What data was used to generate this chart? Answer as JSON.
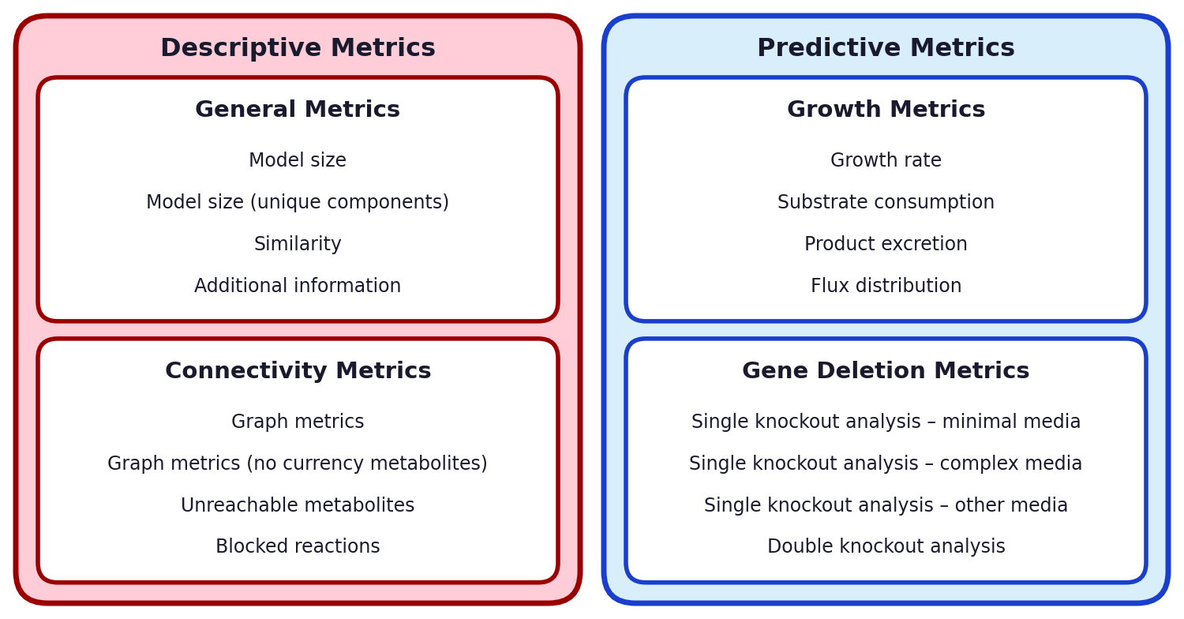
{
  "left_panel": {
    "title": "Descriptive Metrics",
    "bg_color": "#FFCDD8",
    "border_color": "#9B0000",
    "boxes": [
      {
        "title": "General Metrics",
        "items": [
          "Model size",
          "Model size (unique components)",
          "Similarity",
          "Additional information"
        ],
        "bg_color": "#FFFFFF",
        "border_color": "#9B0000"
      },
      {
        "title": "Connectivity Metrics",
        "items": [
          "Graph metrics",
          "Graph metrics (no currency metabolites)",
          "Unreachable metabolites",
          "Blocked reactions"
        ],
        "bg_color": "#FFFFFF",
        "border_color": "#9B0000"
      }
    ]
  },
  "right_panel": {
    "title": "Predictive Metrics",
    "bg_color": "#D8EEFA",
    "border_color": "#1A3FCC",
    "boxes": [
      {
        "title": "Growth Metrics",
        "items": [
          "Growth rate",
          "Substrate consumption",
          "Product excretion",
          "Flux distribution"
        ],
        "bg_color": "#FFFFFF",
        "border_color": "#1A3FCC"
      },
      {
        "title": "Gene Deletion Metrics",
        "items": [
          "Single knockout analysis – minimal media",
          "Single knockout analysis – complex media",
          "Single knockout analysis – other media",
          "Double knockout analysis"
        ],
        "bg_color": "#FFFFFF",
        "border_color": "#1A3FCC"
      }
    ]
  },
  "title_fontsize": 23,
  "subtitle_fontsize": 21,
  "item_fontsize": 17,
  "text_color": "#1a1a2e",
  "fig_bg": "#FFFFFF",
  "fig_width": 15.0,
  "fig_height": 7.84,
  "fig_dpi": 100
}
